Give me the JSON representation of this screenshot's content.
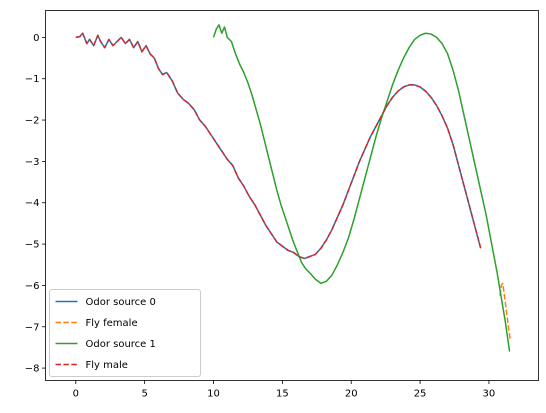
{
  "chart_data": {
    "type": "line",
    "title": "",
    "xlabel": "",
    "ylabel": "",
    "xlim": [
      -2.2,
      33.6
    ],
    "ylim": [
      -8.3,
      0.65
    ],
    "xticks": [
      0,
      5,
      10,
      15,
      20,
      25,
      30
    ],
    "xtick_labels": [
      "0",
      "5",
      "10",
      "15",
      "20",
      "25",
      "30"
    ],
    "yticks": [
      0,
      -1,
      -2,
      -3,
      -4,
      -5,
      -6,
      -7,
      -8
    ],
    "ytick_labels": [
      "0",
      "−1",
      "−2",
      "−3",
      "−4",
      "−5",
      "−6",
      "−7",
      "−8"
    ],
    "grid": false,
    "legend_position": "lower-left",
    "series": [
      {
        "name": "Odor source 0",
        "color": "#1f77b4",
        "style": "solid",
        "x": [
          0,
          0.3,
          0.5,
          0.8,
          1.0,
          1.3,
          1.6,
          1.8,
          2.1,
          2.4,
          2.7,
          3.0,
          3.3,
          3.6,
          3.9,
          4.2,
          4.5,
          4.8,
          5.1,
          5.4,
          5.7,
          6.0,
          6.3,
          6.6,
          7.0,
          7.4,
          7.8,
          8.2,
          8.6,
          9.0,
          9.4,
          9.8,
          10.2,
          10.6,
          11.0,
          11.4,
          11.8,
          12.2,
          12.6,
          13.0,
          13.4,
          13.8,
          14.2,
          14.6,
          15.0,
          15.4,
          15.8,
          16.2,
          16.6,
          17.0,
          17.4,
          17.8,
          18.2,
          18.6,
          19.0,
          19.4,
          19.8,
          20.2,
          20.6,
          21.0,
          21.4,
          21.8,
          22.2,
          22.6,
          23.0,
          23.4,
          23.8,
          24.2,
          24.6,
          25.0,
          25.4,
          25.8,
          26.2,
          26.6,
          27.0,
          27.4,
          27.8,
          28.2,
          28.6,
          29.0,
          29.4
        ],
        "y": [
          0.0,
          0.02,
          0.1,
          -0.15,
          -0.05,
          -0.2,
          0.05,
          -0.1,
          -0.25,
          -0.05,
          -0.2,
          -0.1,
          0.0,
          -0.15,
          -0.05,
          -0.25,
          -0.1,
          -0.35,
          -0.2,
          -0.4,
          -0.5,
          -0.75,
          -0.9,
          -0.85,
          -1.05,
          -1.35,
          -1.5,
          -1.6,
          -1.75,
          -2.0,
          -2.15,
          -2.35,
          -2.55,
          -2.75,
          -2.95,
          -3.1,
          -3.4,
          -3.6,
          -3.85,
          -4.05,
          -4.3,
          -4.55,
          -4.75,
          -4.95,
          -5.05,
          -5.15,
          -5.2,
          -5.3,
          -5.35,
          -5.3,
          -5.25,
          -5.1,
          -4.9,
          -4.65,
          -4.35,
          -4.05,
          -3.7,
          -3.35,
          -3.0,
          -2.7,
          -2.4,
          -2.15,
          -1.9,
          -1.65,
          -1.45,
          -1.3,
          -1.2,
          -1.15,
          -1.15,
          -1.2,
          -1.3,
          -1.45,
          -1.65,
          -1.9,
          -2.2,
          -2.6,
          -3.1,
          -3.6,
          -4.1,
          -4.6,
          -5.1
        ]
      },
      {
        "name": "Fly female",
        "color": "#ff7f0e",
        "style": "dashed",
        "x": [
          30.8,
          30.9,
          31.0,
          31.15,
          31.3,
          31.45,
          31.55
        ],
        "y": [
          -6.25,
          -6.0,
          -5.95,
          -6.3,
          -6.7,
          -7.1,
          -7.3
        ]
      },
      {
        "name": "Odor source 1",
        "color": "#2ca02c",
        "style": "solid",
        "x": [
          10.0,
          10.2,
          10.4,
          10.6,
          10.8,
          11.0,
          11.3,
          11.6,
          11.9,
          12.2,
          12.5,
          12.8,
          13.1,
          13.4,
          13.7,
          14.0,
          14.3,
          14.6,
          14.9,
          15.2,
          15.5,
          15.8,
          16.1,
          16.4,
          16.7,
          17.0,
          17.4,
          17.8,
          18.2,
          18.6,
          19.0,
          19.4,
          19.8,
          20.2,
          20.6,
          21.0,
          21.4,
          21.8,
          22.2,
          22.6,
          23.0,
          23.4,
          23.8,
          24.2,
          24.6,
          25.0,
          25.4,
          25.8,
          26.2,
          26.6,
          27.0,
          27.4,
          27.8,
          28.2,
          28.6,
          29.0,
          29.4,
          29.8,
          30.2,
          30.6,
          30.9,
          31.2,
          31.5
        ],
        "y": [
          0.0,
          0.2,
          0.3,
          0.1,
          0.25,
          0.0,
          -0.1,
          -0.4,
          -0.65,
          -0.85,
          -1.1,
          -1.4,
          -1.75,
          -2.1,
          -2.5,
          -2.9,
          -3.3,
          -3.7,
          -4.05,
          -4.35,
          -4.65,
          -4.95,
          -5.2,
          -5.45,
          -5.6,
          -5.7,
          -5.85,
          -5.95,
          -5.9,
          -5.75,
          -5.5,
          -5.2,
          -4.85,
          -4.4,
          -3.9,
          -3.4,
          -2.9,
          -2.4,
          -1.95,
          -1.55,
          -1.15,
          -0.8,
          -0.5,
          -0.25,
          -0.05,
          0.05,
          0.1,
          0.08,
          0.0,
          -0.15,
          -0.4,
          -0.8,
          -1.3,
          -1.9,
          -2.5,
          -3.1,
          -3.7,
          -4.3,
          -5.0,
          -5.7,
          -6.3,
          -6.9,
          -7.6
        ]
      },
      {
        "name": "Fly male",
        "color": "#d62728",
        "style": "dashed",
        "x": [
          0,
          0.3,
          0.5,
          0.8,
          1.0,
          1.3,
          1.6,
          1.8,
          2.1,
          2.4,
          2.7,
          3.0,
          3.3,
          3.6,
          3.9,
          4.2,
          4.5,
          4.8,
          5.1,
          5.4,
          5.7,
          6.0,
          6.3,
          6.6,
          7.0,
          7.4,
          7.8,
          8.2,
          8.6,
          9.0,
          9.4,
          9.8,
          10.2,
          10.6,
          11.0,
          11.4,
          11.8,
          12.2,
          12.6,
          13.0,
          13.4,
          13.8,
          14.2,
          14.6,
          15.0,
          15.4,
          15.8,
          16.2,
          16.6,
          17.0,
          17.4,
          17.8,
          18.2,
          18.6,
          19.0,
          19.4,
          19.8,
          20.2,
          20.6,
          21.0,
          21.4,
          21.8,
          22.2,
          22.6,
          23.0,
          23.4,
          23.8,
          24.2,
          24.6,
          25.0,
          25.4,
          25.8,
          26.2,
          26.6,
          27.0,
          27.4,
          27.8,
          28.2,
          28.6,
          29.0,
          29.4
        ],
        "y": [
          0.0,
          0.02,
          0.1,
          -0.15,
          -0.05,
          -0.2,
          0.05,
          -0.1,
          -0.25,
          -0.05,
          -0.2,
          -0.1,
          0.0,
          -0.15,
          -0.05,
          -0.25,
          -0.1,
          -0.35,
          -0.2,
          -0.4,
          -0.5,
          -0.75,
          -0.9,
          -0.85,
          -1.05,
          -1.35,
          -1.5,
          -1.6,
          -1.75,
          -2.0,
          -2.15,
          -2.35,
          -2.55,
          -2.75,
          -2.95,
          -3.1,
          -3.4,
          -3.6,
          -3.85,
          -4.05,
          -4.3,
          -4.55,
          -4.75,
          -4.95,
          -5.05,
          -5.15,
          -5.2,
          -5.3,
          -5.35,
          -5.3,
          -5.25,
          -5.1,
          -4.9,
          -4.65,
          -4.35,
          -4.05,
          -3.7,
          -3.35,
          -3.0,
          -2.7,
          -2.4,
          -2.15,
          -1.9,
          -1.65,
          -1.45,
          -1.3,
          -1.2,
          -1.15,
          -1.15,
          -1.2,
          -1.3,
          -1.45,
          -1.65,
          -1.9,
          -2.2,
          -2.6,
          -3.1,
          -3.6,
          -4.1,
          -4.6,
          -5.1
        ]
      }
    ]
  }
}
